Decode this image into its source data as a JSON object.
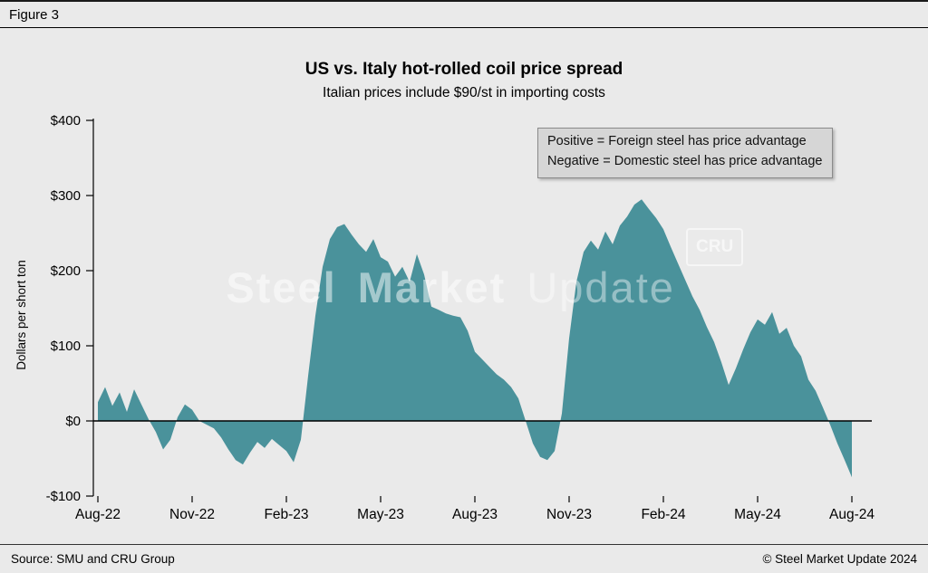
{
  "figure_label": "Figure 3",
  "title": "US vs. Italy hot-rolled coil price spread",
  "subtitle": "Italian prices include $90/st in importing costs",
  "legend": {
    "line1": "Positive = Foreign steel has price advantage",
    "line2": "Negative = Domestic steel has price advantage"
  },
  "watermark": {
    "steel_market": "Steel Market",
    "update": "Update",
    "cru": "CRU"
  },
  "footer": {
    "source": "Source: SMU and CRU Group",
    "copyright": "© Steel Market Update 2024"
  },
  "colors": {
    "area": "#4a929b",
    "background": "#eaeaea",
    "legend_bg": "#d6d6d6",
    "zero_line": "#000000"
  },
  "chart_data": {
    "type": "area",
    "title": "US vs. Italy hot-rolled coil price spread",
    "subtitle": "Italian prices include $90/st in importing costs",
    "xlabel": "",
    "ylabel": "Dollars per short ton",
    "ylim": [
      -100,
      400
    ],
    "grid": false,
    "legend_position": "top-right",
    "y_ticks": [
      {
        "value": 400,
        "label": "$400"
      },
      {
        "value": 300,
        "label": "$300"
      },
      {
        "value": 200,
        "label": "$200"
      },
      {
        "value": 100,
        "label": "$100"
      },
      {
        "value": 0,
        "label": "$0"
      },
      {
        "value": -100,
        "label": "-$100"
      }
    ],
    "x_tick_labels": [
      "Aug-22",
      "Nov-22",
      "Feb-23",
      "May-23",
      "Aug-23",
      "Nov-23",
      "Feb-24",
      "May-24",
      "Aug-24"
    ],
    "x_tick_indices": [
      0,
      13,
      26,
      39,
      52,
      65,
      78,
      91,
      104
    ],
    "x_unit": "weeks from Aug-22",
    "values": [
      25,
      45,
      20,
      38,
      12,
      42,
      22,
      2,
      -15,
      -38,
      -25,
      5,
      22,
      15,
      0,
      -5,
      -10,
      -22,
      -38,
      -52,
      -58,
      -42,
      -28,
      -36,
      -24,
      -32,
      -40,
      -55,
      -25,
      60,
      140,
      205,
      242,
      258,
      262,
      248,
      235,
      225,
      242,
      218,
      212,
      192,
      205,
      185,
      222,
      195,
      152,
      148,
      143,
      140,
      138,
      120,
      92,
      82,
      72,
      62,
      55,
      45,
      30,
      0,
      -30,
      -48,
      -52,
      -40,
      10,
      110,
      185,
      225,
      240,
      228,
      252,
      235,
      260,
      272,
      288,
      295,
      282,
      270,
      255,
      232,
      210,
      188,
      166,
      148,
      125,
      105,
      78,
      48,
      70,
      95,
      118,
      135,
      128,
      145,
      116,
      124,
      100,
      86,
      55,
      40,
      18,
      -5,
      -30,
      -52,
      -75
    ]
  }
}
